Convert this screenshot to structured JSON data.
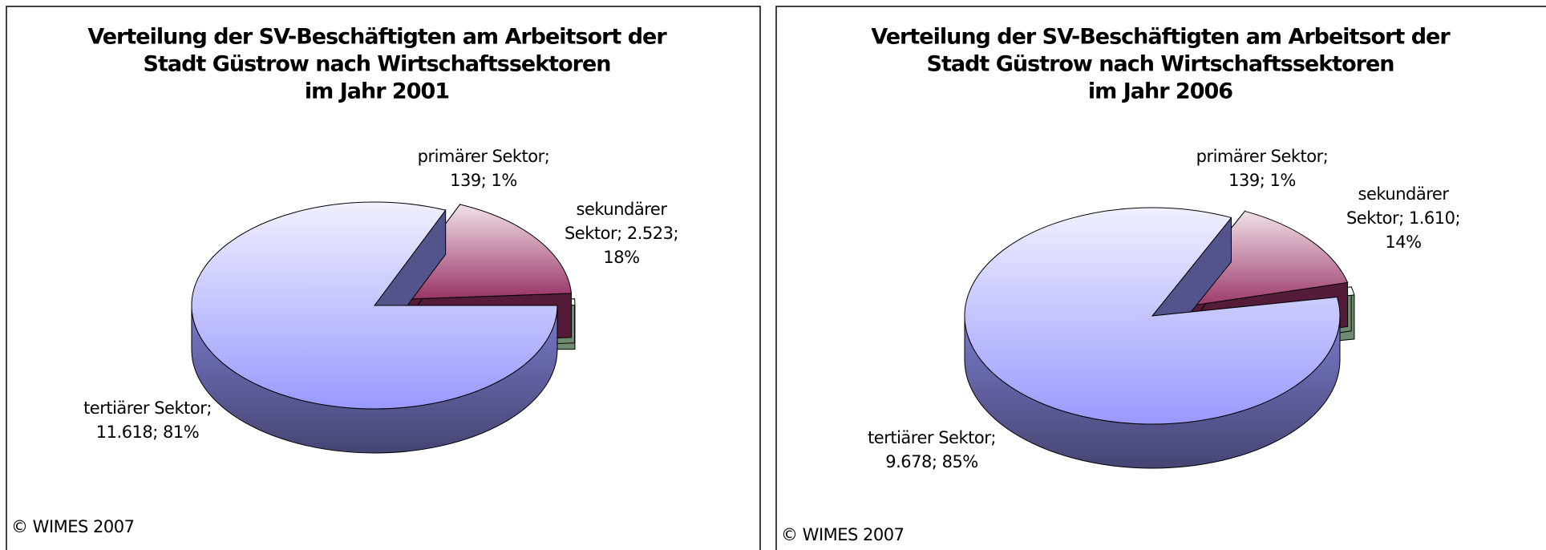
{
  "chart_data": [
    {
      "type": "pie3d",
      "title": [
        "Verteilung der SV-Beschäftigten am Arbeitsort der",
        "Stadt Güstrow nach Wirtschaftssektoren",
        "im Jahr 2001"
      ],
      "categories": [
        "primärer Sektor",
        "sekundärer Sektor",
        "tertiärer Sektor"
      ],
      "values": [
        139,
        2523,
        11618
      ],
      "value_labels": [
        [
          "primärer Sektor;",
          "139; 1%"
        ],
        [
          "sekundärer",
          "Sektor; 2.523;",
          "18%"
        ],
        [
          "tertiärer Sektor;",
          "11.618; 81%"
        ]
      ],
      "colors": [
        "#ccffcc",
        "#993366",
        "#9999ff"
      ],
      "source": "© WIMES 2007"
    },
    {
      "type": "pie3d",
      "title": [
        "Verteilung der SV-Beschäftigten am Arbeitsort der",
        "Stadt Güstrow nach Wirtschaftssektoren",
        "im Jahr 2006"
      ],
      "categories": [
        "primärer Sektor",
        "sekundärer Sektor",
        "tertiärer Sektor"
      ],
      "values": [
        139,
        1610,
        9678
      ],
      "value_labels": [
        [
          "primärer Sektor;",
          "139; 1%"
        ],
        [
          "sekundärer",
          "Sektor; 1.610;",
          "14%"
        ],
        [
          "tertiärer Sektor;",
          "9.678; 85%"
        ]
      ],
      "colors": [
        "#ccffcc",
        "#993366",
        "#9999ff"
      ],
      "source": "© WIMES 2007"
    }
  ]
}
